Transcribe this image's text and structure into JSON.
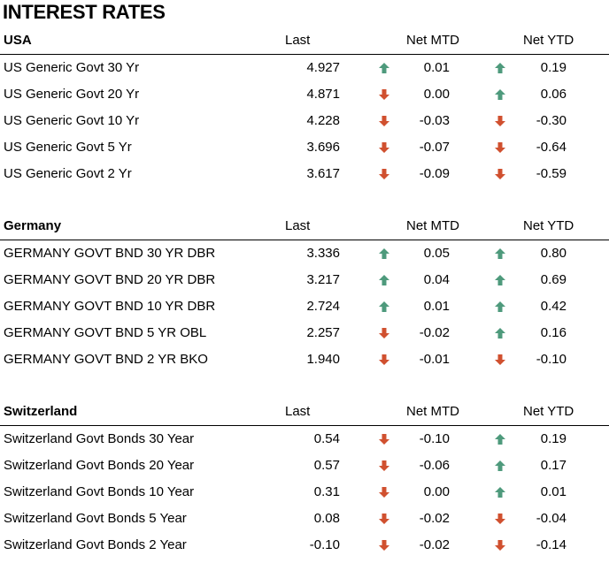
{
  "title": "INTEREST RATES",
  "colors": {
    "up": "#4e9a7c",
    "down": "#d0502f"
  },
  "sections": [
    {
      "name": "USA",
      "headers": {
        "last": "Last",
        "mtd": "Net MTD",
        "ytd": "Net YTD"
      },
      "rows": [
        {
          "name": "US Generic Govt 30 Yr",
          "last": "4.927",
          "mtd_dir": "up",
          "mtd": "0.01",
          "ytd_dir": "up",
          "ytd": "0.19"
        },
        {
          "name": "US Generic Govt 20 Yr",
          "last": "4.871",
          "mtd_dir": "down",
          "mtd": "0.00",
          "ytd_dir": "up",
          "ytd": "0.06"
        },
        {
          "name": "US Generic Govt 10 Yr",
          "last": "4.228",
          "mtd_dir": "down",
          "mtd": "-0.03",
          "ytd_dir": "down",
          "ytd": "-0.30"
        },
        {
          "name": "US Generic Govt 5 Yr",
          "last": "3.696",
          "mtd_dir": "down",
          "mtd": "-0.07",
          "ytd_dir": "down",
          "ytd": "-0.64"
        },
        {
          "name": "US Generic Govt 2 Yr",
          "last": "3.617",
          "mtd_dir": "down",
          "mtd": "-0.09",
          "ytd_dir": "down",
          "ytd": "-0.59"
        }
      ]
    },
    {
      "name": "Germany",
      "headers": {
        "last": "Last",
        "mtd": "Net MTD",
        "ytd": "Net YTD"
      },
      "rows": [
        {
          "name": "GERMANY GOVT BND 30 YR DBR",
          "last": "3.336",
          "mtd_dir": "up",
          "mtd": "0.05",
          "ytd_dir": "up",
          "ytd": "0.80"
        },
        {
          "name": "GERMANY GOVT BND 20 YR DBR",
          "last": "3.217",
          "mtd_dir": "up",
          "mtd": "0.04",
          "ytd_dir": "up",
          "ytd": "0.69"
        },
        {
          "name": "GERMANY GOVT BND 10 YR DBR",
          "last": "2.724",
          "mtd_dir": "up",
          "mtd": "0.01",
          "ytd_dir": "up",
          "ytd": "0.42"
        },
        {
          "name": "GERMANY GOVT BND 5 YR OBL",
          "last": "2.257",
          "mtd_dir": "down",
          "mtd": "-0.02",
          "ytd_dir": "up",
          "ytd": "0.16"
        },
        {
          "name": "GERMANY GOVT BND 2 YR BKO",
          "last": "1.940",
          "mtd_dir": "down",
          "mtd": "-0.01",
          "ytd_dir": "down",
          "ytd": "-0.10"
        }
      ]
    },
    {
      "name": "Switzerland",
      "headers": {
        "last": "Last",
        "mtd": "Net MTD",
        "ytd": "Net YTD"
      },
      "rows": [
        {
          "name": "Switzerland Govt Bonds 30 Year",
          "last": "0.54",
          "mtd_dir": "down",
          "mtd": "-0.10",
          "ytd_dir": "up",
          "ytd": "0.19"
        },
        {
          "name": "Switzerland Govt Bonds 20 Year",
          "last": "0.57",
          "mtd_dir": "down",
          "mtd": "-0.06",
          "ytd_dir": "up",
          "ytd": "0.17"
        },
        {
          "name": "Switzerland Govt Bonds 10 Year",
          "last": "0.31",
          "mtd_dir": "down",
          "mtd": "0.00",
          "ytd_dir": "up",
          "ytd": "0.01"
        },
        {
          "name": "Switzerland Govt Bonds 5 Year",
          "last": "0.08",
          "mtd_dir": "down",
          "mtd": "-0.02",
          "ytd_dir": "down",
          "ytd": "-0.04"
        },
        {
          "name": "Switzerland Govt Bonds 2 Year",
          "last": "-0.10",
          "mtd_dir": "down",
          "mtd": "-0.02",
          "ytd_dir": "down",
          "ytd": "-0.14"
        }
      ]
    }
  ]
}
